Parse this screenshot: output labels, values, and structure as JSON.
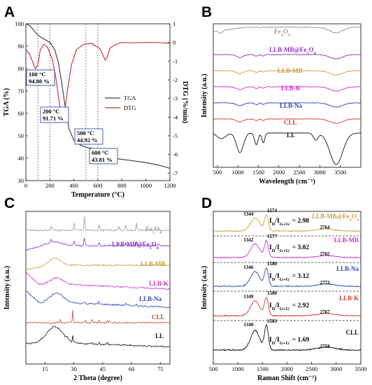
{
  "chart_data": [
    {
      "panel": "A",
      "type": "line",
      "xlabel": "Temperature (°C)",
      "ylabel": "TGA (%)",
      "y2label": "DTG (%/min)",
      "xlim": [
        0,
        1200
      ],
      "ylim": [
        30,
        100
      ],
      "y2lim": [
        -7.4,
        1
      ],
      "xticks": [
        0,
        200,
        400,
        600,
        800,
        1000,
        1200
      ],
      "yticks": [
        30,
        40,
        50,
        60,
        70,
        80,
        90,
        100
      ],
      "y2ticks": [
        1,
        0,
        -1,
        -2,
        -3,
        -4,
        -5,
        -6,
        -7
      ],
      "legend": [
        {
          "name": "TGA",
          "color": "#444444"
        },
        {
          "name": "DTG",
          "color": "#c0393b"
        }
      ],
      "legend_position": "right",
      "series": [
        {
          "name": "TGA",
          "color": "#444444",
          "axis": "left",
          "x": [
            0,
            30,
            60,
            100,
            150,
            200,
            240,
            270,
            300,
            330,
            360,
            400,
            450,
            500,
            550,
            600,
            650,
            700,
            800,
            900,
            1000,
            1100,
            1200
          ],
          "y": [
            100,
            99.3,
            97.5,
            94.8,
            93.2,
            91.71,
            88.5,
            83,
            73,
            62,
            53,
            48,
            46,
            44.92,
            44.4,
            43.81,
            41.5,
            40.3,
            39.5,
            38.8,
            38,
            37,
            35.5
          ]
        },
        {
          "name": "DTG",
          "color": "#c0393b",
          "axis": "right",
          "x": [
            0,
            30,
            60,
            80,
            100,
            120,
            150,
            180,
            220,
            250,
            280,
            300,
            320,
            350,
            380,
            420,
            480,
            550,
            620,
            660,
            680,
            700,
            750,
            800,
            900,
            1000,
            1100,
            1200
          ],
          "y": [
            -0.4,
            -0.6,
            -1.1,
            -1.4,
            -1.2,
            -0.4,
            -0.1,
            -0.25,
            -0.9,
            -1.9,
            -3.3,
            -4.2,
            -3.9,
            -2.4,
            -1.2,
            -0.4,
            -0.1,
            -0.05,
            -0.35,
            -0.95,
            -0.75,
            -0.3,
            -0.1,
            0.0,
            -0.02,
            0.0,
            0.0,
            -0.05
          ]
        }
      ],
      "annotations": [
        {
          "lines": [
            "100 °C",
            "94.80 %"
          ],
          "x": 100
        },
        {
          "lines": [
            "200 °C",
            "91.71 %"
          ],
          "x": 200
        },
        {
          "lines": [
            "500 °C",
            "44.92 %"
          ],
          "x": 500
        },
        {
          "lines": [
            "600 °C",
            "43.81 %"
          ],
          "x": 600
        }
      ],
      "vlines": [
        100,
        200,
        500,
        600
      ]
    },
    {
      "panel": "B",
      "type": "line",
      "xlabel": "Wavelength (cm⁻¹)",
      "ylabel": "Intensity (a.u.)",
      "xlim": [
        400,
        4000
      ],
      "xticks": [
        500,
        1000,
        1500,
        2000,
        2500,
        3000,
        3500
      ],
      "series": [
        {
          "name": "Fe₃O₄",
          "color": "#9a9a9a"
        },
        {
          "name": "LLB-MB@Fe₃O₄",
          "color": "#8833cc"
        },
        {
          "name": "LLB-MB",
          "color": "#d19a3a"
        },
        {
          "name": "LLB-K",
          "color": "#cc33cc"
        },
        {
          "name": "LLB-Na",
          "color": "#3344bb"
        },
        {
          "name": "CLL",
          "color": "#d33a3a"
        },
        {
          "name": "LL",
          "color": "#111111"
        }
      ]
    },
    {
      "panel": "C",
      "type": "line",
      "xlabel": "2 Theta (degree)",
      "ylabel": "Intensity (a.u.)",
      "xlim": [
        5,
        80
      ],
      "xticks": [
        15,
        30,
        45,
        60,
        75
      ],
      "series": [
        {
          "name": "Fe₃O₄",
          "color": "#9a9a9a"
        },
        {
          "name": "LLB-MB@Fe₃O₄",
          "color": "#8833cc"
        },
        {
          "name": "LLB-MB",
          "color": "#c9a03a"
        },
        {
          "name": "LLB-K",
          "color": "#cc33cc"
        },
        {
          "name": "LLB-Na",
          "color": "#3344bb"
        },
        {
          "name": "CLL",
          "color": "#b0503a"
        },
        {
          "name": "LL",
          "color": "#111111"
        }
      ]
    },
    {
      "panel": "D",
      "type": "line",
      "xlabel": "Raman Shift (cm⁻¹)",
      "ylabel": "Intensity (a.u.)",
      "xlim": [
        500,
        3500
      ],
      "xticks": [
        500,
        1000,
        1500,
        2000,
        2500,
        3000,
        3500
      ],
      "series": [
        {
          "name": "LLB-MB@Fe₃O₄",
          "color": "#c9a03a",
          "ratio": "2.98",
          "peaks": [
            "1344",
            "1574",
            "2764"
          ]
        },
        {
          "name": "LLB-MB",
          "color": "#cc33cc",
          "ratio": "3.02",
          "peaks": [
            "1342",
            "1577",
            "2765"
          ]
        },
        {
          "name": "LLB-Na",
          "color": "#3344bb",
          "ratio": "3.12",
          "peaks": [
            "1346",
            "1580",
            "2773"
          ]
        },
        {
          "name": "LLB-K",
          "color": "#d33a3a",
          "ratio": "2.92",
          "peaks": [
            "1349",
            "1580",
            "2767"
          ]
        },
        {
          "name": "CLL",
          "color": "#111111",
          "ratio": "1.69",
          "peaks": [
            "1340",
            "1583",
            "2758"
          ]
        }
      ],
      "ratio_prefix": "I",
      "ratio_sub": "D",
      "ratio_mid": "/I",
      "ratio_sub2": "G+G'",
      "ratio_eq": " = "
    }
  ],
  "panels": {
    "a": "A",
    "b": "B",
    "c": "C",
    "d": "D"
  }
}
